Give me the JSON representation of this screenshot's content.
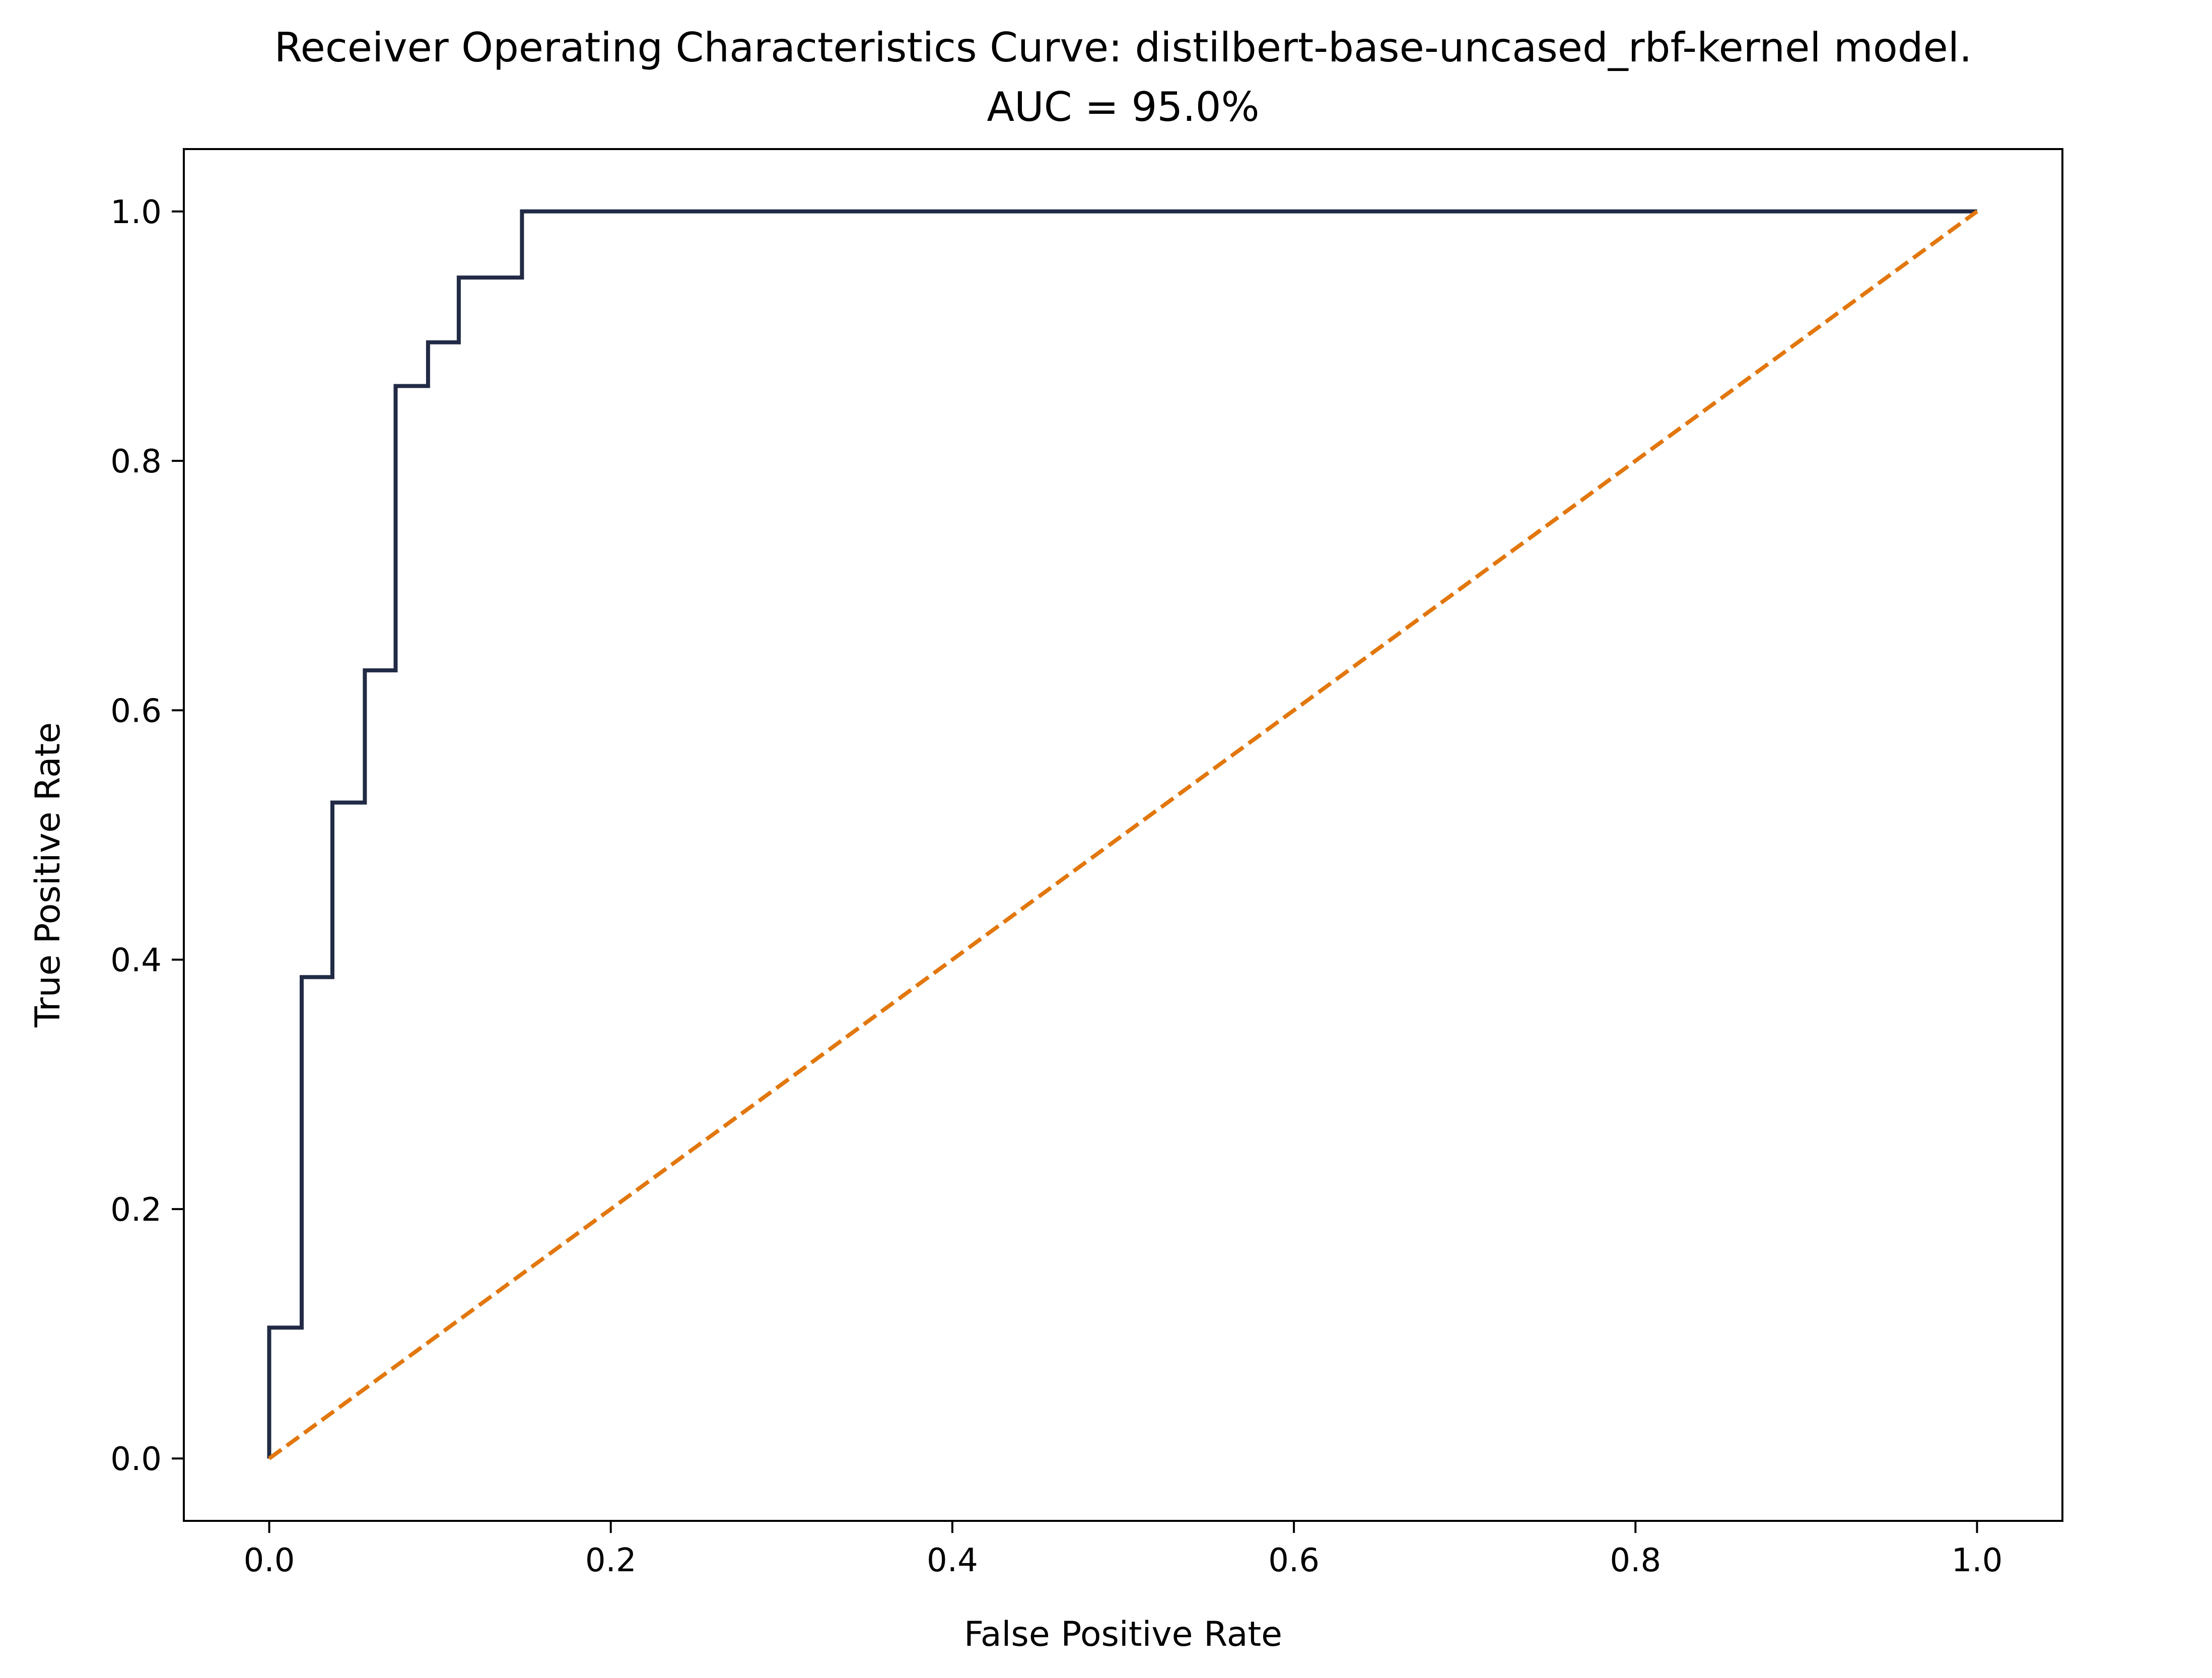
{
  "chart_data": {
    "type": "line",
    "title": "Receiver Operating Characteristics Curve: distilbert-base-uncased_rbf-kernel model.",
    "subtitle": "AUC = 95.0%",
    "xlabel": "False Positive Rate",
    "ylabel": "True Positive Rate",
    "xlim": [
      -0.05,
      1.05
    ],
    "ylim": [
      -0.05,
      1.05
    ],
    "x_ticks": [
      "0.0",
      "0.2",
      "0.4",
      "0.6",
      "0.8",
      "1.0"
    ],
    "y_ticks": [
      "0.0",
      "0.2",
      "0.4",
      "0.6",
      "0.8",
      "1.0"
    ],
    "grid": false,
    "legend": "none",
    "series": [
      {
        "style": "solid",
        "color": "#222b45",
        "x": [
          0.0,
          0.0,
          0.019,
          0.019,
          0.037,
          0.037,
          0.056,
          0.056,
          0.074,
          0.074,
          0.093,
          0.093,
          0.111,
          0.111,
          0.148,
          0.148,
          1.0
        ],
        "y": [
          0.0,
          0.105,
          0.105,
          0.386,
          0.386,
          0.526,
          0.526,
          0.632,
          0.632,
          0.86,
          0.86,
          0.895,
          0.895,
          0.947,
          0.947,
          1.0,
          1.0
        ]
      },
      {
        "style": "dashed",
        "color": "#e2770d",
        "x": [
          0.0,
          1.0
        ],
        "y": [
          0.0,
          1.0
        ]
      }
    ]
  }
}
